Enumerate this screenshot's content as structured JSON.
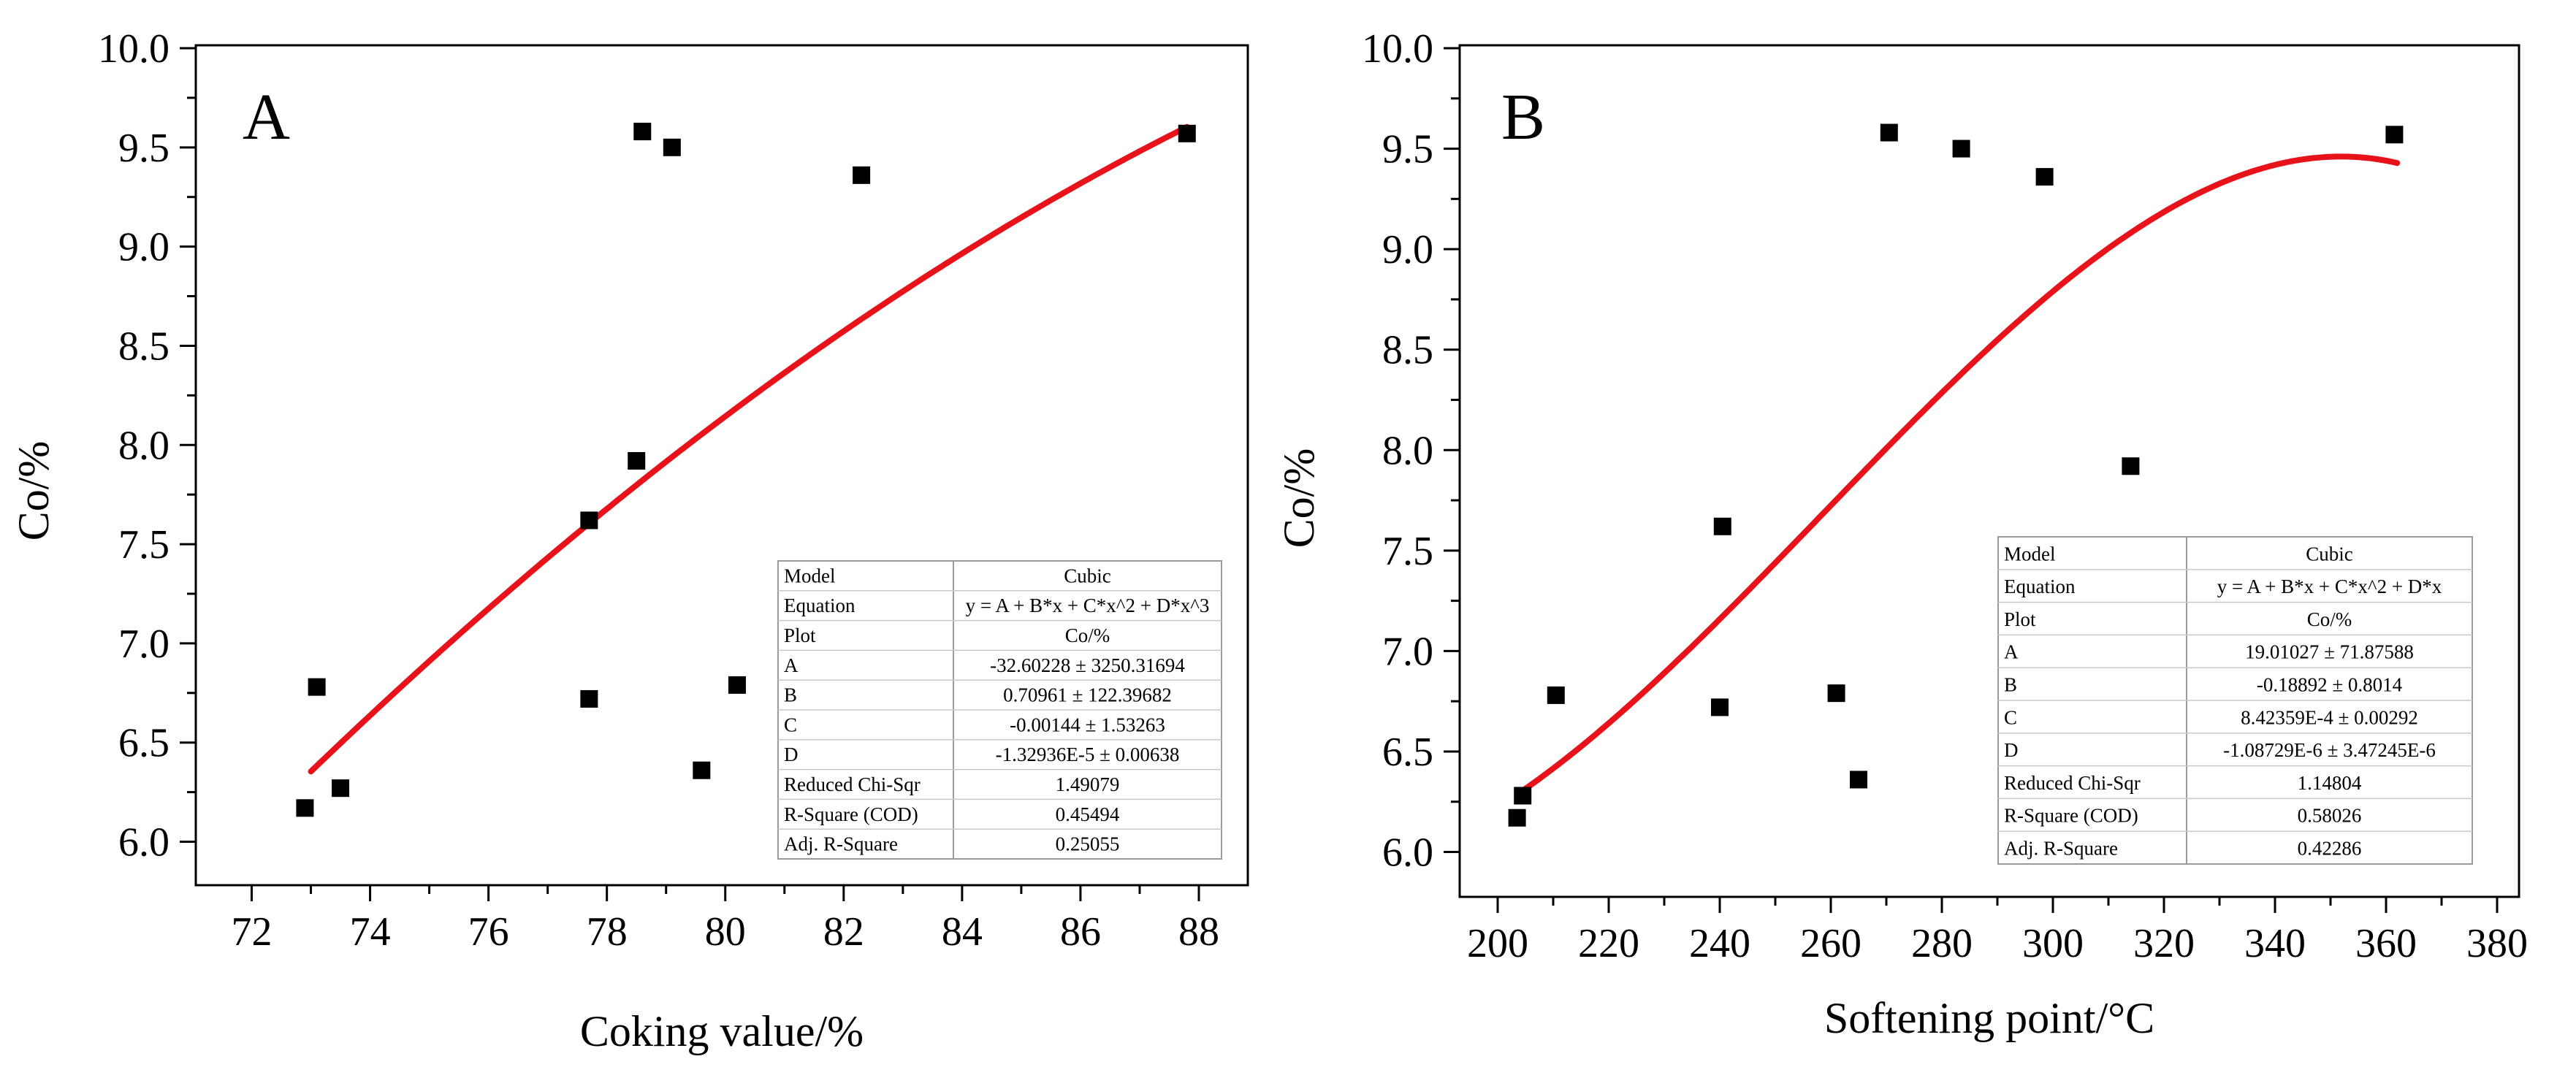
{
  "colors": {
    "fit": "#e8121b",
    "point": "#000000",
    "axis": "#000000",
    "table_border": "#9a9a9a"
  },
  "chart_data": [
    {
      "type": "scatter",
      "panel_label": "A",
      "xlabel": "Coking value/%",
      "ylabel": "Co/%",
      "xlim": [
        71,
        89
      ],
      "ylim": [
        5.85,
        10.0
      ],
      "xticks": [
        "72",
        "74",
        "76",
        "78",
        "80",
        "82",
        "84",
        "86",
        "88"
      ],
      "yticks": [
        "6.0",
        "6.5",
        "7.0",
        "7.5",
        "8.0",
        "8.5",
        "9.0",
        "9.5",
        "10.0"
      ],
      "points": [
        [
          72.9,
          6.17
        ],
        [
          73.1,
          6.78
        ],
        [
          73.5,
          6.27
        ],
        [
          77.7,
          7.62
        ],
        [
          77.7,
          6.72
        ],
        [
          78.5,
          7.92
        ],
        [
          78.6,
          9.58
        ],
        [
          79.1,
          9.5
        ],
        [
          79.6,
          6.36
        ],
        [
          80.2,
          6.79
        ],
        [
          82.3,
          9.36
        ],
        [
          87.8,
          9.57
        ]
      ],
      "fit": {
        "coef": [
          -32.60228,
          0.70961,
          -0.00144,
          -1.32936e-05
        ],
        "x_range": [
          73.0,
          87.8
        ]
      },
      "fit_table": [
        [
          "Model",
          "Cubic"
        ],
        [
          "Equation",
          "y = A + B*x + C*x^2 + D*x^3"
        ],
        [
          "Plot",
          "Co/%"
        ],
        [
          "A",
          "-32.60228 ± 3250.31694"
        ],
        [
          "B",
          "0.70961 ± 122.39682"
        ],
        [
          "C",
          "-0.00144 ± 1.53263"
        ],
        [
          "D",
          "-1.32936E-5 ± 0.00638"
        ],
        [
          "Reduced Chi-Sqr",
          "1.49079"
        ],
        [
          "R-Square (COD)",
          "0.45494"
        ],
        [
          "Adj. R-Square",
          "0.25055"
        ]
      ]
    },
    {
      "type": "scatter",
      "panel_label": "B",
      "xlabel": "Softening point/°C",
      "ylabel": "Co/%",
      "xlim": [
        190,
        380
      ],
      "ylim": [
        5.8,
        10.0
      ],
      "xticks": [
        "200",
        "220",
        "240",
        "260",
        "280",
        "300",
        "320",
        "340",
        "360",
        "380"
      ],
      "yticks": [
        "6.0",
        "6.5",
        "7.0",
        "7.5",
        "8.0",
        "8.5",
        "9.0",
        "9.5",
        "10.0"
      ],
      "points": [
        [
          203.5,
          6.17
        ],
        [
          204.5,
          6.28
        ],
        [
          210.5,
          6.78
        ],
        [
          240.0,
          6.72
        ],
        [
          240.5,
          7.62
        ],
        [
          261.0,
          6.79
        ],
        [
          265.0,
          6.36
        ],
        [
          270.5,
          9.58
        ],
        [
          283.5,
          9.5
        ],
        [
          298.5,
          9.36
        ],
        [
          314.0,
          7.92
        ],
        [
          361.5,
          9.57
        ]
      ],
      "fit": {
        "coef": [
          19.01027,
          -0.18892,
          0.000842359,
          -1.08729e-06
        ],
        "x_range": [
          204.0,
          362.0
        ]
      },
      "fit_table": [
        [
          "Model",
          "Cubic"
        ],
        [
          "Equation",
          "y = A + B*x + C*x^2 + D*x"
        ],
        [
          "Plot",
          "Co/%"
        ],
        [
          "A",
          "19.01027 ± 71.87588"
        ],
        [
          "B",
          "-0.18892 ± 0.8014"
        ],
        [
          "C",
          "8.42359E-4 ± 0.00292"
        ],
        [
          "D",
          "-1.08729E-6 ± 3.47245E-6"
        ],
        [
          "Reduced Chi-Sqr",
          "1.14804"
        ],
        [
          "R-Square (COD)",
          "0.58026"
        ],
        [
          "Adj. R-Square",
          "0.42286"
        ]
      ]
    }
  ]
}
